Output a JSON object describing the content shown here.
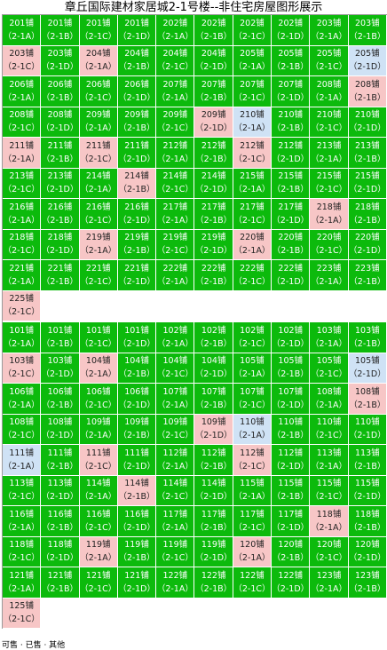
{
  "title": "章丘国际建材家居城2-1号楼--非住宅房屋图形展示",
  "footer": "可售 · 已售 · 其他",
  "colors": {
    "green": "#0cba0c",
    "pink": "#f7c6c6",
    "blue": "#cfe2f5"
  },
  "rows": [
    [
      [
        "201铺",
        "（2-1A）",
        "green"
      ],
      [
        "201铺",
        "（2-1B）",
        "green"
      ],
      [
        "201铺",
        "（2-1C）",
        "green"
      ],
      [
        "201铺",
        "（2-1D）",
        "green"
      ],
      [
        "202铺",
        "（2-1A）",
        "green"
      ],
      [
        "202铺",
        "（2-1B）",
        "green"
      ],
      [
        "202铺",
        "（2-1C）",
        "green"
      ],
      [
        "202铺",
        "（2-1D）",
        "green"
      ],
      [
        "203铺",
        "（2-1A）",
        "green"
      ],
      [
        "203铺",
        "（2-1B）",
        "green"
      ]
    ],
    [
      [
        "203铺",
        "（2-1C）",
        "pink"
      ],
      [
        "203铺",
        "（2-1D）",
        "green"
      ],
      [
        "204铺",
        "（2-1A）",
        "pink"
      ],
      [
        "204铺",
        "（2-1B）",
        "green"
      ],
      [
        "204铺",
        "（2-1C）",
        "green"
      ],
      [
        "204铺",
        "（2-1D）",
        "green"
      ],
      [
        "205铺",
        "（2-1A）",
        "green"
      ],
      [
        "205铺",
        "（2-1B）",
        "green"
      ],
      [
        "205铺",
        "（2-1C）",
        "green"
      ],
      [
        "205铺",
        "（2-1D）",
        "blue"
      ]
    ],
    [
      [
        "206铺",
        "（2-1A）",
        "green"
      ],
      [
        "206铺",
        "（2-1B）",
        "green"
      ],
      [
        "206铺",
        "（2-1C）",
        "green"
      ],
      [
        "206铺",
        "（2-1D）",
        "green"
      ],
      [
        "207铺",
        "（2-1A）",
        "green"
      ],
      [
        "207铺",
        "（2-1B）",
        "green"
      ],
      [
        "207铺",
        "（2-1C）",
        "green"
      ],
      [
        "207铺",
        "（2-1D）",
        "green"
      ],
      [
        "208铺",
        "（2-1A）",
        "green"
      ],
      [
        "208铺",
        "（2-1B）",
        "pink"
      ]
    ],
    [
      [
        "208铺",
        "（2-1C）",
        "green"
      ],
      [
        "208铺",
        "（2-1D）",
        "green"
      ],
      [
        "209铺",
        "（2-1A）",
        "green"
      ],
      [
        "209铺",
        "（2-1B）",
        "green"
      ],
      [
        "209铺",
        "（2-1C）",
        "green"
      ],
      [
        "209铺",
        "（2-1D）",
        "pink"
      ],
      [
        "210铺",
        "（2-1A）",
        "blue"
      ],
      [
        "210铺",
        "（2-1B）",
        "green"
      ],
      [
        "210铺",
        "（2-1C）",
        "green"
      ],
      [
        "210铺",
        "（2-1D）",
        "green"
      ]
    ],
    [
      [
        "211铺",
        "（2-1A）",
        "pink"
      ],
      [
        "211铺",
        "（2-1B）",
        "green"
      ],
      [
        "211铺",
        "（2-1C）",
        "pink"
      ],
      [
        "211铺",
        "（2-1D）",
        "green"
      ],
      [
        "212铺",
        "（2-1A）",
        "green"
      ],
      [
        "212铺",
        "（2-1B）",
        "green"
      ],
      [
        "212铺",
        "（2-1C）",
        "pink"
      ],
      [
        "212铺",
        "（2-1D）",
        "green"
      ],
      [
        "213铺",
        "（2-1A）",
        "green"
      ],
      [
        "213铺",
        "（2-1B）",
        "green"
      ]
    ],
    [
      [
        "213铺",
        "（2-1C）",
        "green"
      ],
      [
        "213铺",
        "（2-1D）",
        "green"
      ],
      [
        "214铺",
        "（2-1A）",
        "green"
      ],
      [
        "214铺",
        "（2-1B）",
        "pink"
      ],
      [
        "214铺",
        "（2-1C）",
        "green"
      ],
      [
        "214铺",
        "（2-1D）",
        "green"
      ],
      [
        "215铺",
        "（2-1A）",
        "green"
      ],
      [
        "215铺",
        "（2-1B）",
        "green"
      ],
      [
        "215铺",
        "（2-1C）",
        "green"
      ],
      [
        "215铺",
        "（2-1D）",
        "green"
      ]
    ],
    [
      [
        "216铺",
        "（2-1A）",
        "green"
      ],
      [
        "216铺",
        "（2-1B）",
        "green"
      ],
      [
        "216铺",
        "（2-1C）",
        "green"
      ],
      [
        "216铺",
        "（2-1D）",
        "green"
      ],
      [
        "217铺",
        "（2-1A）",
        "green"
      ],
      [
        "217铺",
        "（2-1B）",
        "green"
      ],
      [
        "217铺",
        "（2-1C）",
        "green"
      ],
      [
        "217铺",
        "（2-1D）",
        "green"
      ],
      [
        "218铺",
        "（2-1A）",
        "pink"
      ],
      [
        "218铺",
        "（2-1B）",
        "green"
      ]
    ],
    [
      [
        "218铺",
        "（2-1C）",
        "green"
      ],
      [
        "218铺",
        "（2-1D）",
        "green"
      ],
      [
        "219铺",
        "（2-1A）",
        "pink"
      ],
      [
        "219铺",
        "（2-1B）",
        "green"
      ],
      [
        "219铺",
        "（2-1C）",
        "green"
      ],
      [
        "219铺",
        "（2-1D）",
        "green"
      ],
      [
        "220铺",
        "（2-1A）",
        "pink"
      ],
      [
        "220铺",
        "（2-1B）",
        "green"
      ],
      [
        "220铺",
        "（2-1C）",
        "green"
      ],
      [
        "220铺",
        "（2-1D）",
        "green"
      ]
    ],
    [
      [
        "221铺",
        "（2-1A）",
        "green"
      ],
      [
        "221铺",
        "（2-1B）",
        "green"
      ],
      [
        "221铺",
        "（2-1C）",
        "green"
      ],
      [
        "221铺",
        "（2-1D）",
        "green"
      ],
      [
        "222铺",
        "（2-1A）",
        "green"
      ],
      [
        "222铺",
        "（2-1B）",
        "green"
      ],
      [
        "222铺",
        "（2-1C）",
        "green"
      ],
      [
        "222铺",
        "（2-1D）",
        "green"
      ],
      [
        "223铺",
        "（2-1A）",
        "green"
      ],
      [
        "223铺",
        "（2-1B）",
        "green"
      ]
    ],
    [
      [
        "225铺",
        "（2-1C）",
        "pink"
      ],
      [
        "",
        "",
        "empty"
      ],
      [
        "",
        "",
        "empty"
      ],
      [
        "",
        "",
        "empty"
      ],
      [
        "",
        "",
        "empty"
      ],
      [
        "",
        "",
        "empty"
      ],
      [
        "",
        "",
        "empty"
      ],
      [
        "",
        "",
        "empty"
      ],
      [
        "",
        "",
        "empty"
      ],
      [
        "",
        "",
        "empty"
      ]
    ],
    [
      [
        "101铺",
        "（2-1A）",
        "green"
      ],
      [
        "101铺",
        "（2-1B）",
        "green"
      ],
      [
        "101铺",
        "（2-1C）",
        "green"
      ],
      [
        "101铺",
        "（2-1D）",
        "green"
      ],
      [
        "102铺",
        "（2-1A）",
        "green"
      ],
      [
        "102铺",
        "（2-1B）",
        "green"
      ],
      [
        "102铺",
        "（2-1C）",
        "green"
      ],
      [
        "102铺",
        "（2-1D）",
        "green"
      ],
      [
        "103铺",
        "（2-1A）",
        "green"
      ],
      [
        "103铺",
        "（2-1B）",
        "green"
      ]
    ],
    [
      [
        "103铺",
        "（2-1C）",
        "pink"
      ],
      [
        "103铺",
        "（2-1D）",
        "green"
      ],
      [
        "104铺",
        "（2-1A）",
        "pink"
      ],
      [
        "104铺",
        "（2-1B）",
        "green"
      ],
      [
        "104铺",
        "（2-1C）",
        "green"
      ],
      [
        "104铺",
        "（2-1D）",
        "green"
      ],
      [
        "105铺",
        "（2-1A）",
        "green"
      ],
      [
        "105铺",
        "（2-1B）",
        "green"
      ],
      [
        "105铺",
        "（2-1C）",
        "green"
      ],
      [
        "105铺",
        "（2-1D）",
        "blue"
      ]
    ],
    [
      [
        "106铺",
        "（2-1A）",
        "green"
      ],
      [
        "106铺",
        "（2-1B）",
        "green"
      ],
      [
        "106铺",
        "（2-1C）",
        "green"
      ],
      [
        "106铺",
        "（2-1D）",
        "green"
      ],
      [
        "107铺",
        "（2-1A）",
        "green"
      ],
      [
        "107铺",
        "（2-1B）",
        "green"
      ],
      [
        "107铺",
        "（2-1C）",
        "green"
      ],
      [
        "107铺",
        "（2-1D）",
        "green"
      ],
      [
        "108铺",
        "（2-1A）",
        "green"
      ],
      [
        "108铺",
        "（2-1B）",
        "pink"
      ]
    ],
    [
      [
        "108铺",
        "（2-1C）",
        "green"
      ],
      [
        "108铺",
        "（2-1D）",
        "green"
      ],
      [
        "109铺",
        "（2-1A）",
        "green"
      ],
      [
        "109铺",
        "（2-1B）",
        "green"
      ],
      [
        "109铺",
        "（2-1C）",
        "green"
      ],
      [
        "109铺",
        "（2-1D）",
        "pink"
      ],
      [
        "110铺",
        "（2-1A）",
        "blue"
      ],
      [
        "110铺",
        "（2-1B）",
        "green"
      ],
      [
        "110铺",
        "（2-1C）",
        "green"
      ],
      [
        "110铺",
        "（2-1D）",
        "green"
      ]
    ],
    [
      [
        "111铺",
        "（2-1A）",
        "blue"
      ],
      [
        "111铺",
        "（2-1B）",
        "green"
      ],
      [
        "111铺",
        "（2-1C）",
        "pink"
      ],
      [
        "111铺",
        "（2-1D）",
        "green"
      ],
      [
        "112铺",
        "（2-1A）",
        "green"
      ],
      [
        "112铺",
        "（2-1B）",
        "green"
      ],
      [
        "112铺",
        "（2-1C）",
        "pink"
      ],
      [
        "112铺",
        "（2-1D）",
        "green"
      ],
      [
        "113铺",
        "（2-1A）",
        "green"
      ],
      [
        "113铺",
        "（2-1B）",
        "green"
      ]
    ],
    [
      [
        "113铺",
        "（2-1C）",
        "green"
      ],
      [
        "113铺",
        "（2-1D）",
        "green"
      ],
      [
        "114铺",
        "（2-1A）",
        "green"
      ],
      [
        "114铺",
        "（2-1B）",
        "pink"
      ],
      [
        "114铺",
        "（2-1C）",
        "green"
      ],
      [
        "114铺",
        "（2-1D）",
        "green"
      ],
      [
        "115铺",
        "（2-1A）",
        "green"
      ],
      [
        "115铺",
        "（2-1B）",
        "green"
      ],
      [
        "115铺",
        "（2-1C）",
        "green"
      ],
      [
        "115铺",
        "（2-1D）",
        "green"
      ]
    ],
    [
      [
        "116铺",
        "（2-1A）",
        "green"
      ],
      [
        "116铺",
        "（2-1B）",
        "green"
      ],
      [
        "116铺",
        "（2-1C）",
        "green"
      ],
      [
        "116铺",
        "（2-1D）",
        "green"
      ],
      [
        "117铺",
        "（2-1A）",
        "green"
      ],
      [
        "117铺",
        "（2-1B）",
        "green"
      ],
      [
        "117铺",
        "（2-1C）",
        "green"
      ],
      [
        "117铺",
        "（2-1D）",
        "green"
      ],
      [
        "118铺",
        "（2-1A）",
        "pink"
      ],
      [
        "118铺",
        "（2-1B）",
        "green"
      ]
    ],
    [
      [
        "118铺",
        "（2-1C）",
        "green"
      ],
      [
        "118铺",
        "（2-1D）",
        "green"
      ],
      [
        "119铺",
        "（2-1A）",
        "pink"
      ],
      [
        "119铺",
        "（2-1B）",
        "green"
      ],
      [
        "119铺",
        "（2-1C）",
        "green"
      ],
      [
        "119铺",
        "（2-1D）",
        "green"
      ],
      [
        "120铺",
        "（2-1A）",
        "pink"
      ],
      [
        "120铺",
        "（2-1B）",
        "green"
      ],
      [
        "120铺",
        "（2-1C）",
        "green"
      ],
      [
        "120铺",
        "（2-1D）",
        "green"
      ]
    ],
    [
      [
        "121铺",
        "（2-1A）",
        "green"
      ],
      [
        "121铺",
        "（2-1B）",
        "green"
      ],
      [
        "121铺",
        "（2-1C）",
        "green"
      ],
      [
        "121铺",
        "（2-1D）",
        "green"
      ],
      [
        "122铺",
        "（2-1A）",
        "green"
      ],
      [
        "122铺",
        "（2-1B）",
        "green"
      ],
      [
        "122铺",
        "（2-1C）",
        "green"
      ],
      [
        "122铺",
        "（2-1D）",
        "green"
      ],
      [
        "123铺",
        "（2-1A）",
        "green"
      ],
      [
        "123铺",
        "（2-1B）",
        "green"
      ]
    ],
    [
      [
        "125铺",
        "（2-1C）",
        "pink"
      ],
      [
        "",
        "",
        "empty"
      ],
      [
        "",
        "",
        "empty"
      ],
      [
        "",
        "",
        "empty"
      ],
      [
        "",
        "",
        "empty"
      ],
      [
        "",
        "",
        "empty"
      ],
      [
        "",
        "",
        "empty"
      ],
      [
        "",
        "",
        "empty"
      ],
      [
        "",
        "",
        "empty"
      ],
      [
        "",
        "",
        "empty"
      ]
    ]
  ]
}
